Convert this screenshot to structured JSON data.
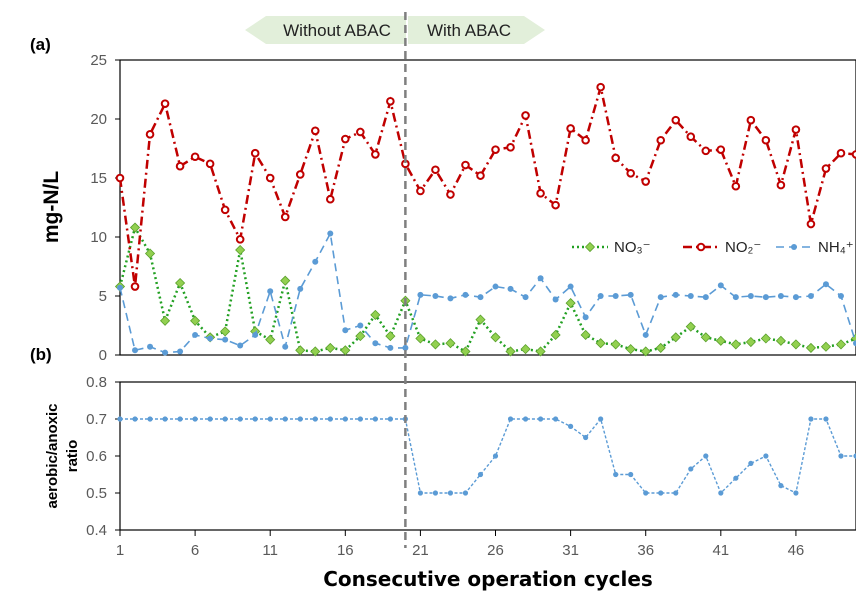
{
  "chart_data": [
    {
      "panel": "(a)",
      "type": "line",
      "ylabel": "mg-N/L",
      "ylim": [
        0,
        25
      ],
      "yticks": [
        0,
        5,
        10,
        15,
        20,
        25
      ],
      "x": [
        1,
        2,
        3,
        4,
        5,
        6,
        7,
        8,
        9,
        10,
        11,
        12,
        13,
        14,
        15,
        16,
        17,
        18,
        19,
        20,
        21,
        22,
        23,
        24,
        25,
        26,
        27,
        28,
        29,
        30,
        31,
        32,
        33,
        34,
        35,
        36,
        37,
        38,
        39,
        40,
        41,
        42,
        43,
        44,
        45,
        46,
        47,
        48,
        49,
        50
      ],
      "xticks": [
        1,
        6,
        11,
        16,
        21,
        26,
        31,
        36,
        41,
        46
      ],
      "series": [
        {
          "name": "NO₃⁻",
          "color": "#22a022",
          "values": [
            5.8,
            10.8,
            8.6,
            2.9,
            6.1,
            2.9,
            1.5,
            2.0,
            8.9,
            2.0,
            1.3,
            6.3,
            0.4,
            0.3,
            0.6,
            0.4,
            1.6,
            3.4,
            1.6,
            4.6,
            1.4,
            0.9,
            1.0,
            0.3,
            3.0,
            1.5,
            0.3,
            0.5,
            0.3,
            1.7,
            4.4,
            1.7,
            1.0,
            0.9,
            0.5,
            0.3,
            0.6,
            1.5,
            2.4,
            1.5,
            1.2,
            0.9,
            1.1,
            1.4,
            1.2,
            0.9,
            0.6,
            0.7,
            0.9,
            1.4
          ]
        },
        {
          "name": "NO₂⁻",
          "color": "#c00000",
          "values": [
            15.0,
            5.8,
            18.7,
            21.3,
            16.0,
            16.8,
            16.2,
            12.3,
            9.8,
            17.1,
            15.0,
            11.7,
            15.3,
            19.0,
            13.2,
            18.3,
            18.9,
            17.0,
            21.5,
            16.2,
            13.9,
            15.7,
            13.6,
            16.1,
            15.2,
            17.4,
            17.6,
            20.3,
            13.7,
            12.7,
            19.2,
            18.2,
            22.7,
            16.7,
            15.4,
            14.7,
            18.2,
            19.9,
            18.5,
            17.3,
            17.4,
            14.3,
            19.9,
            18.2,
            14.4,
            19.1,
            11.1,
            15.8,
            17.1,
            17.0
          ]
        },
        {
          "name": "NH₄⁺",
          "color": "#5b9bd5",
          "values": [
            5.7,
            0.4,
            0.7,
            0.2,
            0.3,
            1.7,
            1.4,
            1.3,
            0.8,
            1.7,
            5.4,
            0.7,
            5.6,
            7.9,
            10.3,
            2.1,
            2.5,
            1.0,
            0.6,
            0.6,
            5.1,
            5.0,
            4.8,
            5.1,
            4.9,
            5.8,
            5.6,
            4.9,
            6.5,
            4.7,
            5.8,
            3.2,
            5.0,
            5.0,
            5.1,
            1.7,
            4.9,
            5.1,
            5.0,
            4.9,
            5.9,
            4.9,
            5.0,
            4.9,
            5.0,
            4.9,
            5.0,
            6.0,
            5.0,
            1.0
          ]
        }
      ],
      "legend": {
        "position": "right",
        "entries": [
          "NO₃⁻",
          "NO₂⁻",
          "NH₄⁺"
        ]
      }
    },
    {
      "panel": "(b)",
      "type": "line",
      "xlabel": "Consecutive operation cycles",
      "ylabel": [
        "aerobic/anoxic",
        "ratio"
      ],
      "ylim": [
        0.4,
        0.8
      ],
      "yticks": [
        "0.4",
        "0.5",
        "0.6",
        "0.7",
        "0.8"
      ],
      "x": [
        1,
        2,
        3,
        4,
        5,
        6,
        7,
        8,
        9,
        10,
        11,
        12,
        13,
        14,
        15,
        16,
        17,
        18,
        19,
        20,
        21,
        22,
        23,
        24,
        25,
        26,
        27,
        28,
        29,
        30,
        31,
        32,
        33,
        34,
        35,
        36,
        37,
        38,
        39,
        40,
        41,
        42,
        43,
        44,
        45,
        46,
        47,
        48,
        49,
        50
      ],
      "xticks": [
        1,
        6,
        11,
        16,
        21,
        26,
        31,
        36,
        41,
        46
      ],
      "series": [
        {
          "color": "#5b9bd5",
          "values": [
            0.7,
            0.7,
            0.7,
            0.7,
            0.7,
            0.7,
            0.7,
            0.7,
            0.7,
            0.7,
            0.7,
            0.7,
            0.7,
            0.7,
            0.7,
            0.7,
            0.7,
            0.7,
            0.7,
            0.7,
            0.5,
            0.5,
            0.5,
            0.5,
            0.55,
            0.6,
            0.7,
            0.7,
            0.7,
            0.7,
            0.68,
            0.65,
            0.7,
            0.55,
            0.55,
            0.5,
            0.5,
            0.5,
            0.565,
            0.6,
            0.5,
            0.54,
            0.58,
            0.6,
            0.52,
            0.5,
            0.7,
            0.7,
            0.6,
            0.6
          ]
        }
      ]
    }
  ],
  "annotations": {
    "divider_x": 20,
    "without": "Without ABAC",
    "with": "With ABAC"
  }
}
